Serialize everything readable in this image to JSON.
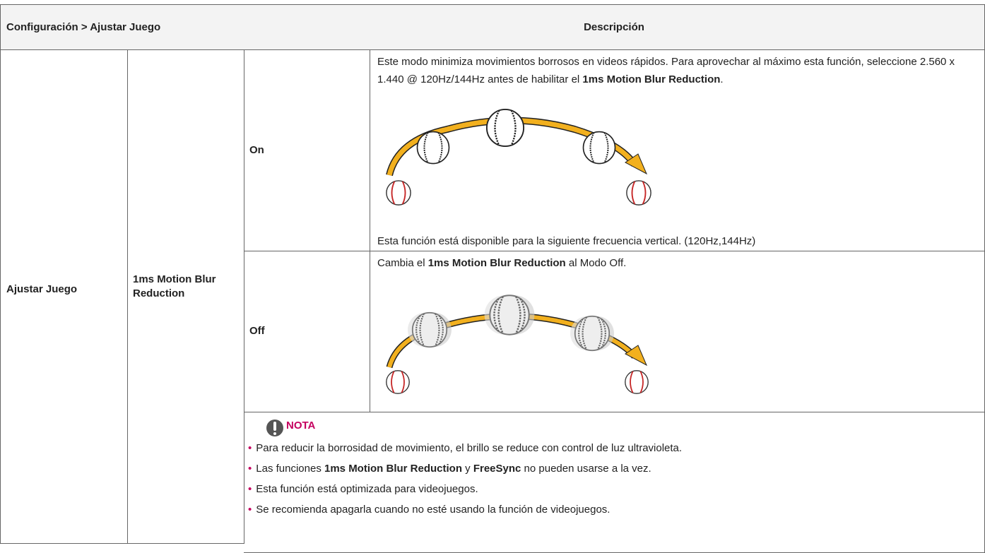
{
  "header": {
    "col1": "Configuración > Ajustar Juego",
    "col2": "Descripción"
  },
  "body": {
    "category": "Ajustar Juego",
    "feature": "1ms Motion Blur Reduction",
    "options": [
      {
        "label": "On",
        "description": [
          {
            "text": "Este modo minimiza movimientos borrosos en videos rápidos. Para aprovechar al máximo esta función, seleccione 2.560 x 1.440 @ 120Hz/144Hz antes de habilitar el ",
            "bold": false
          },
          {
            "text": "1ms Motion Blur Reduction",
            "bold": true
          },
          {
            "text": ".",
            "bold": false
          }
        ],
        "footnote": "Esta función está disponible para la siguiente frecuencia vertical. (120Hz,144Hz)"
      },
      {
        "label": "Off",
        "description": [
          {
            "text": "Cambia el ",
            "bold": false
          },
          {
            "text": "1ms Motion Blur Reduction",
            "bold": true
          },
          {
            "text": " al Modo Off.",
            "bold": false
          }
        ]
      }
    ]
  },
  "note": {
    "title": "NOTA",
    "items": [
      [
        {
          "text": "Para reducir la borrosidad de movimiento, el brillo se reduce con control de luz ultravioleta.",
          "bold": false
        }
      ],
      [
        {
          "text": "Las funciones ",
          "bold": false
        },
        {
          "text": "1ms Motion Blur Reduction",
          "bold": true
        },
        {
          "text": " y ",
          "bold": false
        },
        {
          "text": "FreeSync",
          "bold": true
        },
        {
          "text": " no pueden usarse a la vez.",
          "bold": false
        }
      ],
      [
        {
          "text": "Esta función está optimizada para videojuegos.",
          "bold": false
        }
      ],
      [
        {
          "text": "Se recomienda apagarla cuando no esté usando la función de videojuegos.",
          "bold": false
        }
      ]
    ]
  }
}
